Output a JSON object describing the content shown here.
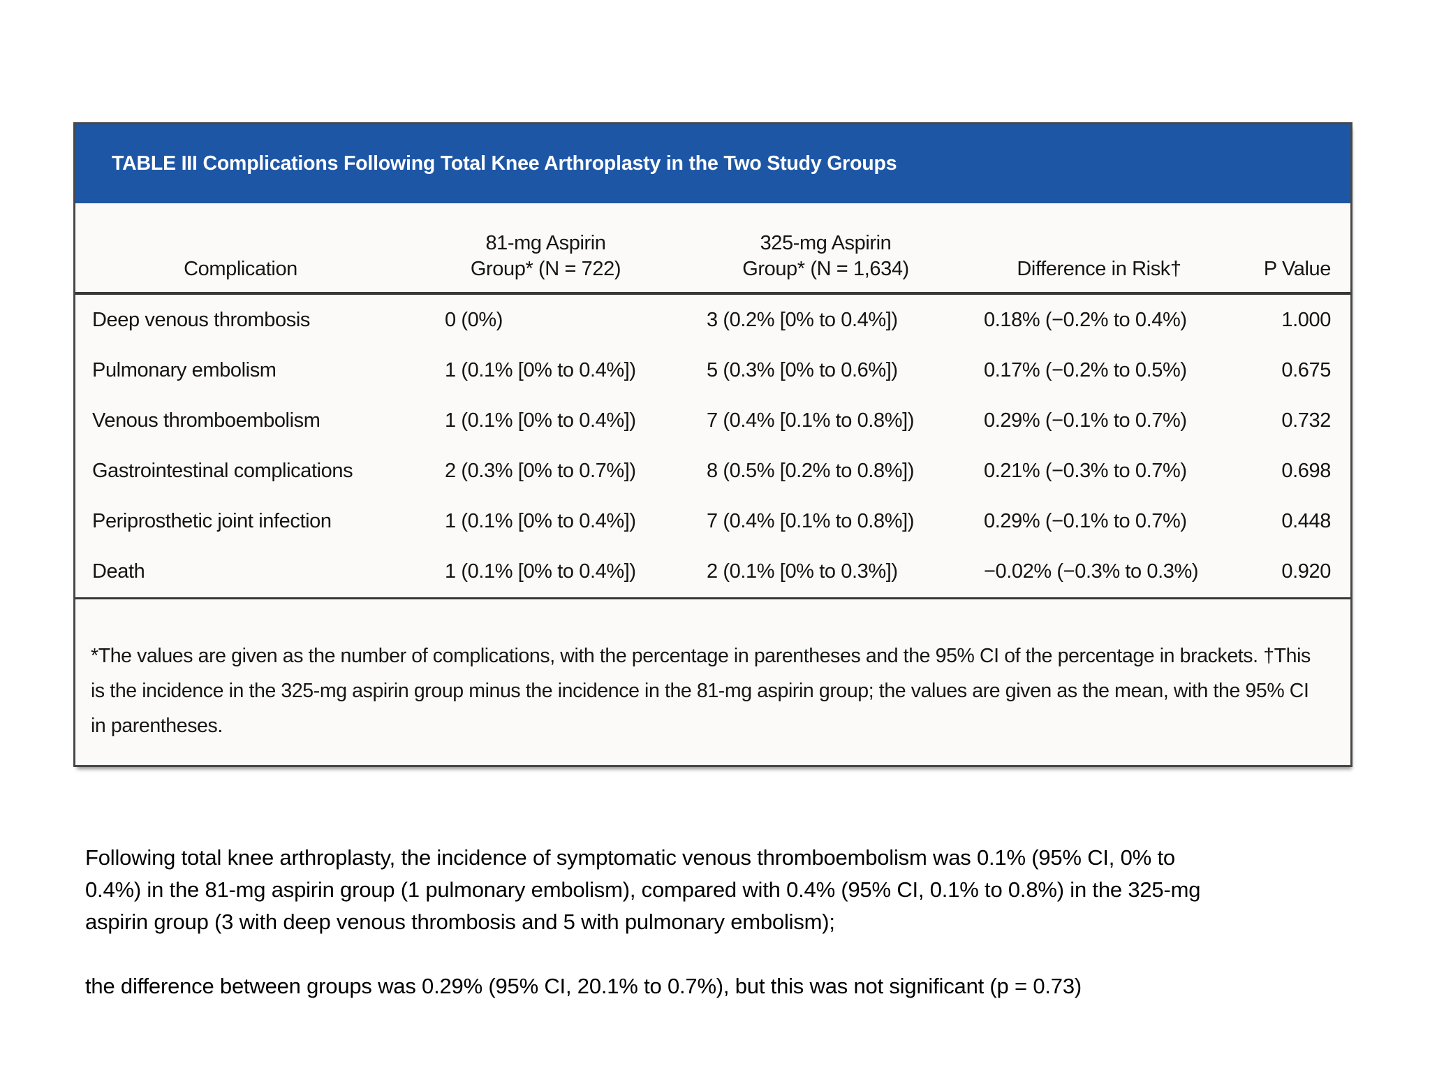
{
  "colors": {
    "title_bar_blue": "#1e56a6",
    "box_border": "#474747",
    "box_background": "#fbfaf8",
    "rule_dark": "#383838",
    "title_text": "#ffffff",
    "body_text": "#111111"
  },
  "table": {
    "title": "TABLE III Complications Following Total Knee Arthroplasty in the Two Study Groups",
    "headers": {
      "complication": "Complication",
      "group81_line1": "81-mg Aspirin",
      "group81_line2": "Group* (N = 722)",
      "group325_line1": "325-mg Aspirin",
      "group325_line2": "Group* (N = 1,634)",
      "difference": "Difference in Risk†",
      "p_value": "P Value"
    },
    "rows": [
      {
        "label": "Deep venous thrombosis",
        "g81": "0 (0%)",
        "g325": "3 (0.2% [0% to 0.4%])",
        "diff": "0.18% (−0.2% to 0.4%)",
        "p": "1.000"
      },
      {
        "label": "Pulmonary embolism",
        "g81": "1 (0.1% [0% to 0.4%])",
        "g325": "5 (0.3% [0% to 0.6%])",
        "diff": "0.17% (−0.2% to 0.5%)",
        "p": "0.675"
      },
      {
        "label": "Venous thromboembolism",
        "g81": "1 (0.1% [0% to 0.4%])",
        "g325": "7 (0.4% [0.1% to 0.8%])",
        "diff": "0.29% (−0.1% to 0.7%)",
        "p": "0.732"
      },
      {
        "label": "Gastrointestinal complications",
        "g81": "2 (0.3% [0% to 0.7%])",
        "g325": "8 (0.5% [0.2% to 0.8%])",
        "diff": "0.21% (−0.3% to 0.7%)",
        "p": "0.698"
      },
      {
        "label": "Periprosthetic joint infection",
        "g81": "1 (0.1% [0% to 0.4%])",
        "g325": "7 (0.4% [0.1% to 0.8%])",
        "diff": "0.29% (−0.1% to 0.7%)",
        "p": "0.448"
      },
      {
        "label": "Death",
        "g81": "1 (0.1% [0% to 0.4%])",
        "g325": "2 (0.1% [0% to 0.3%])",
        "diff": "−0.02% (−0.3% to 0.3%)",
        "p": "0.920"
      }
    ],
    "footnote_lines": [
      "*The values are given as the number of complications, with the percentage in parentheses and the 95% CI of the percentage in brackets. †This",
      "is the incidence in the 325-mg aspirin group minus the incidence in the 81-mg aspirin group; the values are given as the mean, with the 95% CI",
      "in parentheses."
    ]
  },
  "commentary": {
    "paragraph1_lines": [
      "Following total knee arthroplasty, the incidence of symptomatic venous thromboembolism was 0.1% (95% CI, 0% to",
      "0.4%) in the 81-mg aspirin group (1 pulmonary embolism), compared with 0.4% (95% CI, 0.1% to 0.8%) in the 325-mg",
      "aspirin group (3 with deep venous thrombosis and 5 with pulmonary embolism);"
    ],
    "paragraph2": "the difference between groups was 0.29% (95% CI, 20.1% to 0.7%), but this was not significant (p = 0.73)"
  }
}
